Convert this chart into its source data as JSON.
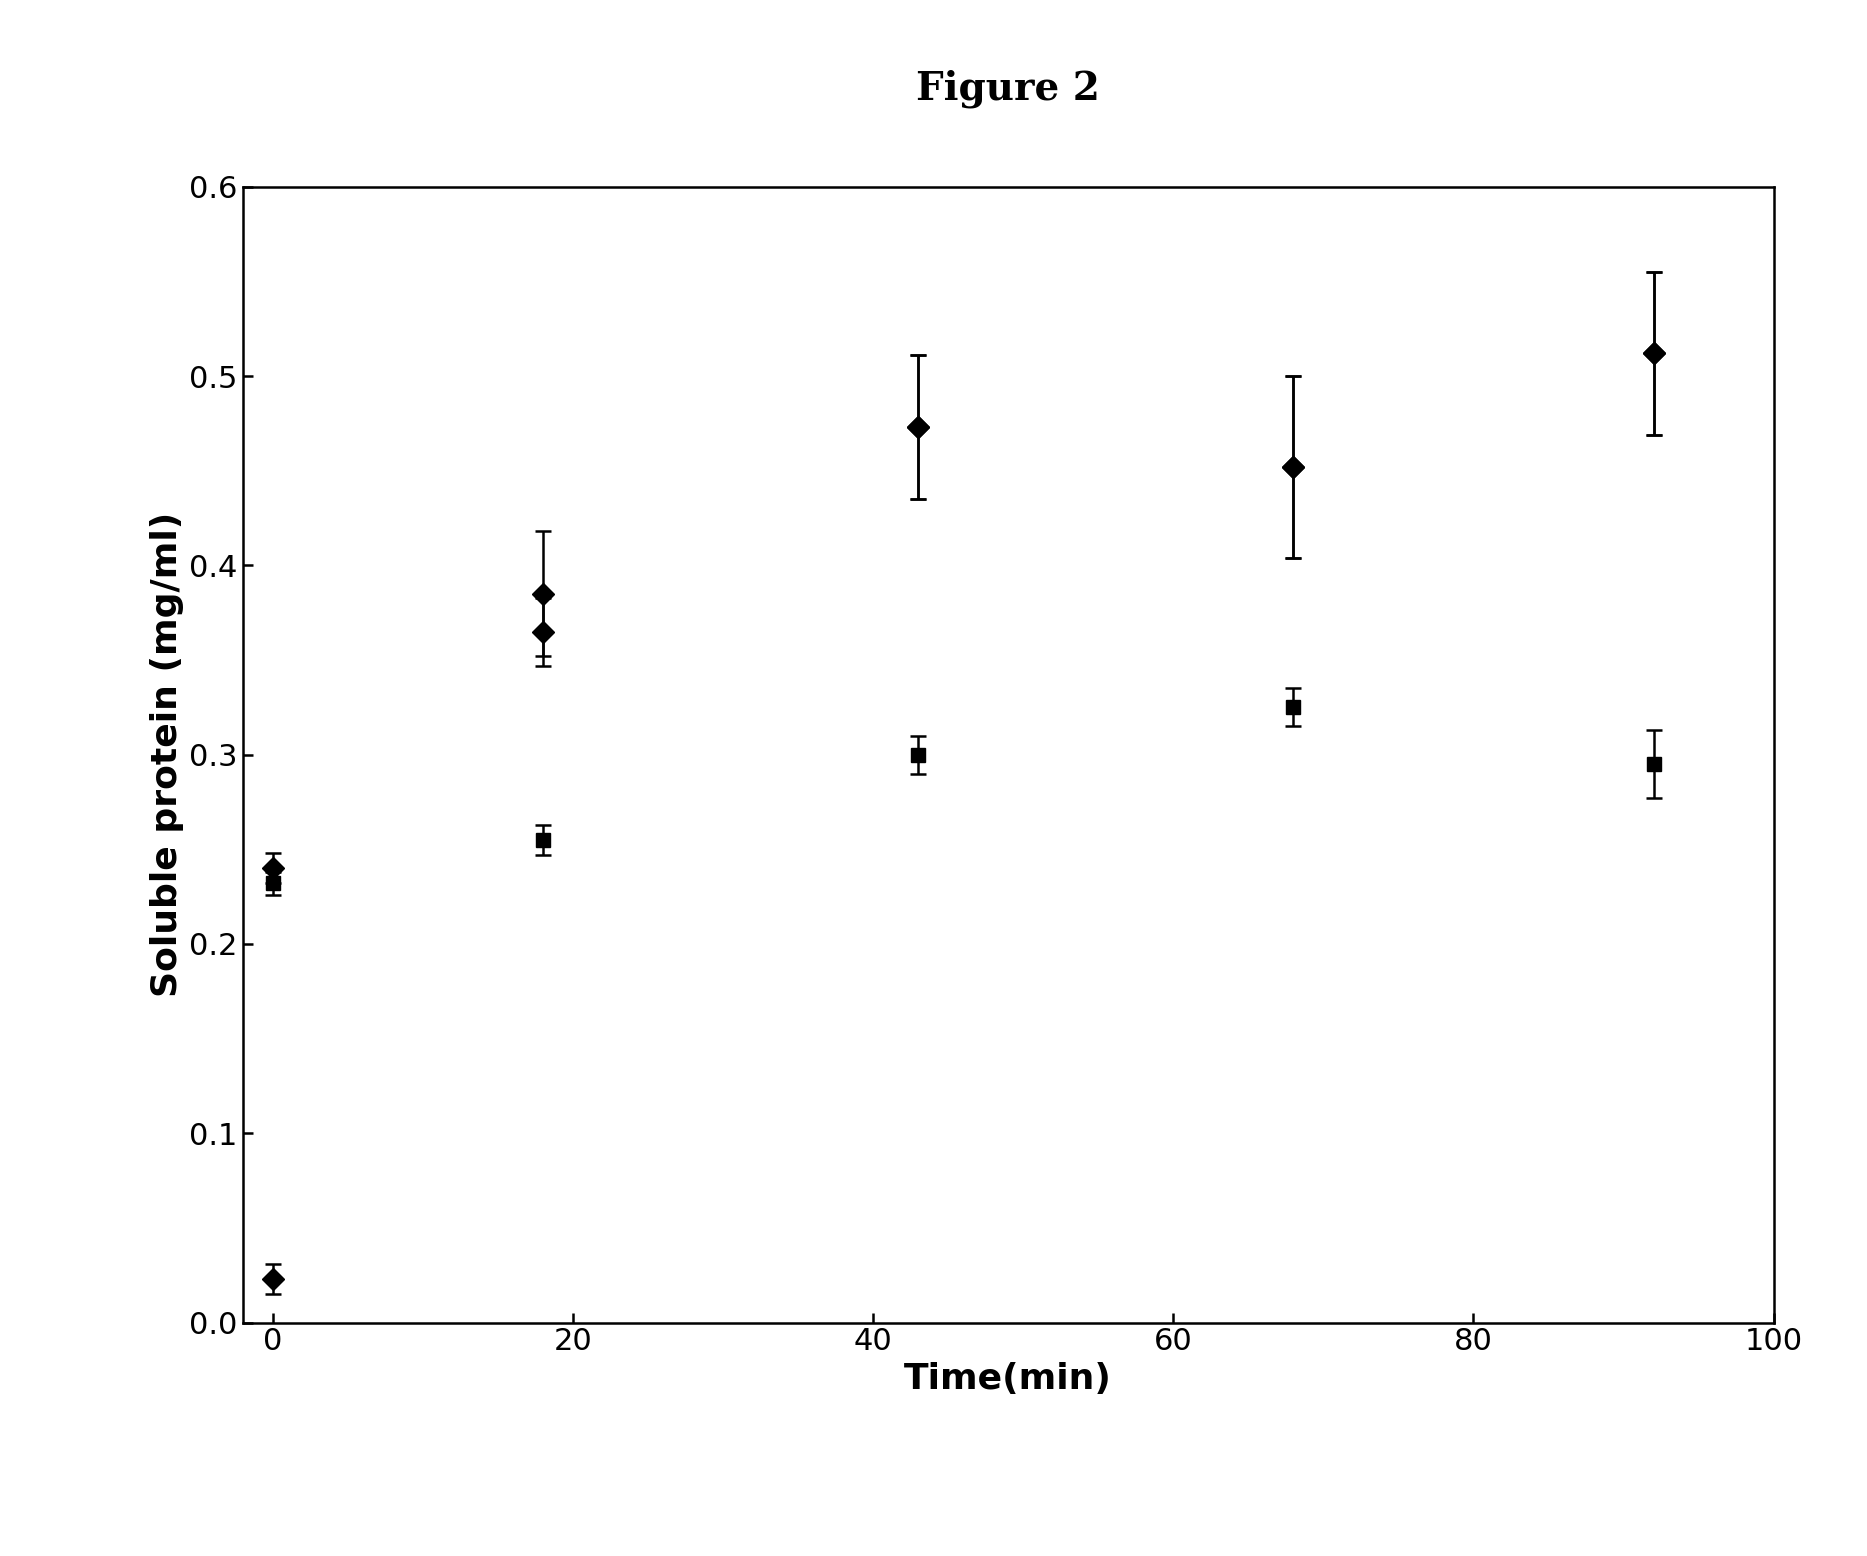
{
  "title": "Figure 2",
  "xlabel": "Time(min)",
  "ylabel": "Soluble protein (mg/ml)",
  "xlim": [
    -2,
    100
  ],
  "ylim": [
    0,
    0.6
  ],
  "xticks": [
    0,
    20,
    40,
    60,
    80,
    100
  ],
  "yticks": [
    0,
    0.1,
    0.2,
    0.3,
    0.4,
    0.5,
    0.6
  ],
  "series1": {
    "x": [
      0,
      18,
      43,
      68,
      92
    ],
    "y": [
      0.023,
      0.385,
      0.473,
      0.452,
      0.512
    ],
    "yerr": [
      0.008,
      0.033,
      0.038,
      0.048,
      0.043
    ],
    "marker": "D",
    "markersize": 11,
    "linewidth": 2.0
  },
  "series2": {
    "x": [
      0,
      18,
      43,
      68,
      92
    ],
    "y": [
      0.24,
      0.365,
      0.473,
      0.452,
      0.512
    ],
    "yerr": [
      0.008,
      0.018,
      0.038,
      0.048,
      0.043
    ],
    "marker": "D",
    "markersize": 11,
    "linewidth": 2.0
  },
  "series3": {
    "x": [
      0,
      18,
      43,
      68,
      92
    ],
    "y": [
      0.232,
      0.255,
      0.3,
      0.325,
      0.295
    ],
    "yerr": [
      0.006,
      0.008,
      0.01,
      0.01,
      0.018
    ],
    "marker": "s",
    "markersize": 10,
    "linewidth": 2.0
  },
  "background_color": "white",
  "title_fontsize": 28,
  "axis_label_fontsize": 26,
  "tick_fontsize": 22
}
